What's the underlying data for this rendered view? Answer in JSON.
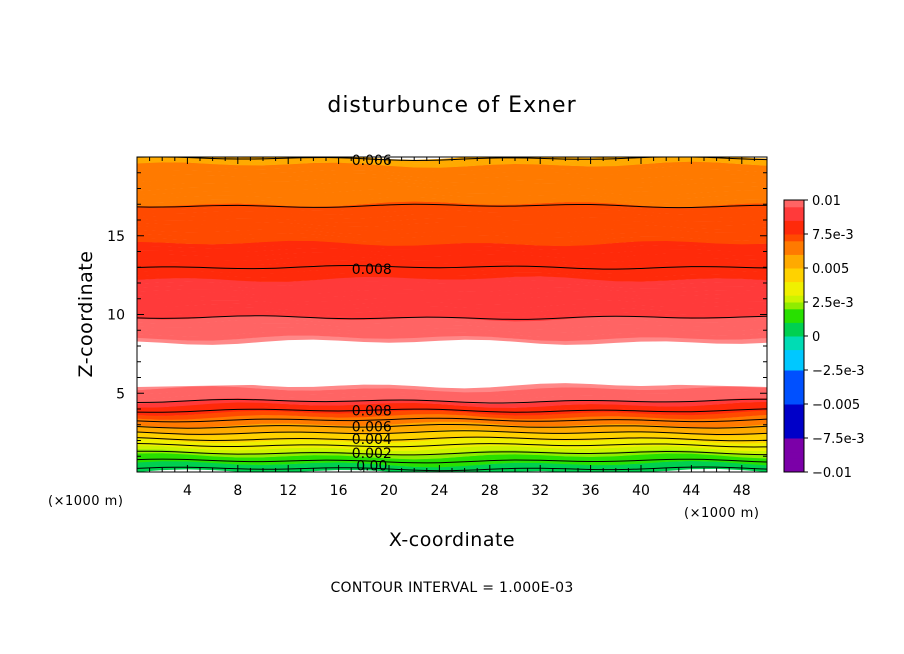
{
  "chart_data": {
    "type": "heatmap",
    "title": "disturbunce of Exner",
    "xlabel": "X-coordinate",
    "ylabel": "Z-coordinate",
    "x_unit": "(×1000 m)",
    "z_unit": "(×1000 m)",
    "xlim": [
      0,
      50
    ],
    "ylim": [
      0,
      20
    ],
    "x_ticks": [
      4,
      8,
      12,
      16,
      20,
      24,
      28,
      32,
      36,
      40,
      44,
      48
    ],
    "y_ticks": [
      5,
      10,
      15
    ],
    "footer": "CONTOUR INTERVAL = 1.000E-03",
    "colorbar": {
      "range": [
        -0.01,
        0.01
      ],
      "tick_labels": [
        "0.01",
        "7.5e-3",
        "0.005",
        "2.5e-3",
        "0",
        "−2.5e-3",
        "−0.005",
        "−7.5e-3",
        "−0.01"
      ],
      "tick_values": [
        0.01,
        0.0075,
        0.005,
        0.0025,
        0,
        -0.0025,
        -0.005,
        -0.0075,
        -0.01
      ]
    },
    "contour_labels": [
      {
        "text": "0.006",
        "x": 18,
        "z": 19.8
      },
      {
        "text": "0.008",
        "x": 18,
        "z": 12.9
      },
      {
        "text": "0.008",
        "x": 18,
        "z": 3.9
      },
      {
        "text": "0.006",
        "x": 18,
        "z": 2.9
      },
      {
        "text": "0.004",
        "x": 18,
        "z": 2.1
      },
      {
        "text": "0.002",
        "x": 18,
        "z": 1.2
      },
      {
        "text": "0.00",
        "x": 18,
        "z": 0.4
      }
    ],
    "profile": [
      {
        "z": 0.0,
        "value": 0.0
      },
      {
        "z": 0.5,
        "value": 0.0012
      },
      {
        "z": 1.0,
        "value": 0.0022
      },
      {
        "z": 1.5,
        "value": 0.0032
      },
      {
        "z": 2.0,
        "value": 0.0042
      },
      {
        "z": 2.5,
        "value": 0.0052
      },
      {
        "z": 3.0,
        "value": 0.0061
      },
      {
        "z": 3.5,
        "value": 0.0072
      },
      {
        "z": 4.0,
        "value": 0.0082
      },
      {
        "z": 4.5,
        "value": 0.0092
      },
      {
        "z": 5.0,
        "value": 0.0096
      },
      {
        "z": 5.6,
        "value": 0.0101
      },
      {
        "z": 8.0,
        "value": 0.0101
      },
      {
        "z": 8.5,
        "value": 0.0098
      },
      {
        "z": 9.5,
        "value": 0.0094
      },
      {
        "z": 10.5,
        "value": 0.0091
      },
      {
        "z": 12.0,
        "value": 0.0087
      },
      {
        "z": 13.0,
        "value": 0.008
      },
      {
        "z": 14.5,
        "value": 0.0075
      },
      {
        "z": 16.9,
        "value": 0.0071
      },
      {
        "z": 18.2,
        "value": 0.0065
      },
      {
        "z": 19.3,
        "value": 0.0061
      },
      {
        "z": 20.0,
        "value": 0.0058
      }
    ]
  }
}
